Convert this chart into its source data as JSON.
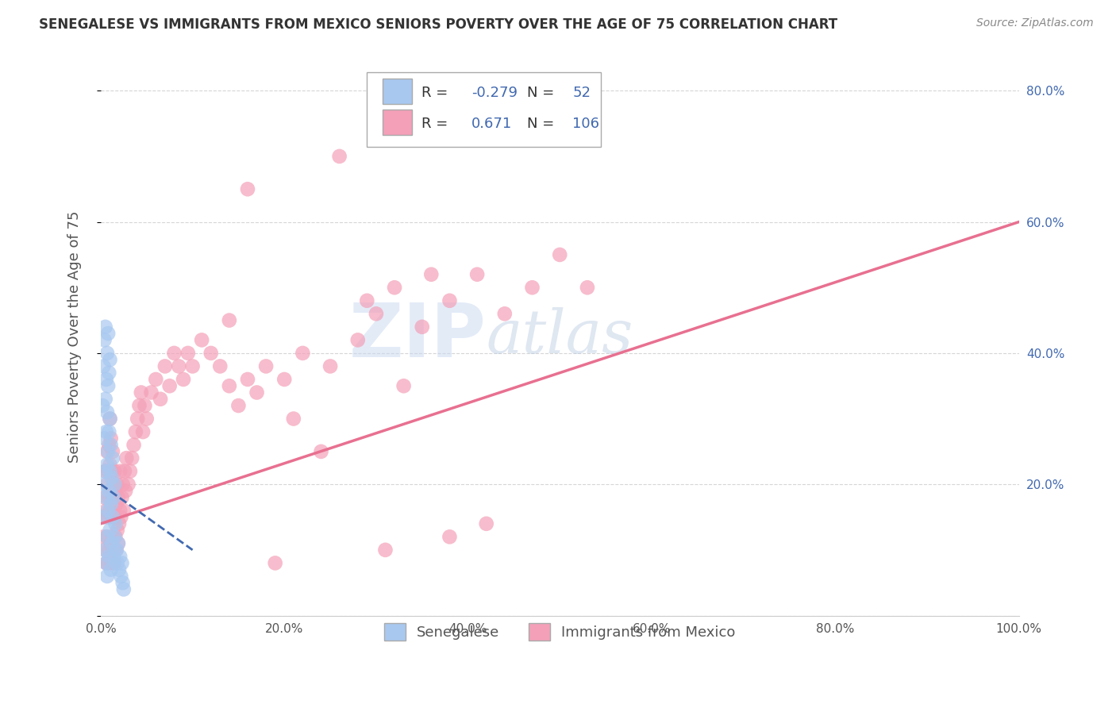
{
  "title": "SENEGALESE VS IMMIGRANTS FROM MEXICO SENIORS POVERTY OVER THE AGE OF 75 CORRELATION CHART",
  "source": "Source: ZipAtlas.com",
  "ylabel": "Seniors Poverty Over the Age of 75",
  "xlim": [
    0.0,
    1.0
  ],
  "ylim": [
    0.0,
    0.85
  ],
  "xticks": [
    0.0,
    0.2,
    0.4,
    0.6,
    0.8,
    1.0
  ],
  "xtick_labels": [
    "0.0%",
    "20.0%",
    "40.0%",
    "60.0%",
    "80.0%",
    "100.0%"
  ],
  "yticks": [
    0.0,
    0.2,
    0.4,
    0.6,
    0.8
  ],
  "right_ytick_labels": [
    "20.0%",
    "40.0%",
    "60.0%",
    "80.0%"
  ],
  "right_yticks": [
    0.2,
    0.4,
    0.6,
    0.8
  ],
  "blue_R": -0.279,
  "blue_N": 52,
  "pink_R": 0.671,
  "pink_N": 106,
  "blue_color": "#A8C8F0",
  "pink_color": "#F4A0B8",
  "blue_line_color": "#4169B0",
  "pink_line_color": "#E87090",
  "legend_label_blue": "Senegalese",
  "legend_label_pink": "Immigrants from Mexico",
  "title_color": "#333333",
  "label_color": "#555555",
  "tick_color": "#555555",
  "grid_color": "#CCCCCC",
  "watermark_zip": "ZIP",
  "watermark_atlas": "atlas",
  "background_color": "#FFFFFF",
  "blue_scatter_x": [
    0.002,
    0.003,
    0.003,
    0.004,
    0.004,
    0.004,
    0.005,
    0.005,
    0.005,
    0.005,
    0.006,
    0.006,
    0.006,
    0.006,
    0.007,
    0.007,
    0.007,
    0.007,
    0.007,
    0.008,
    0.008,
    0.008,
    0.008,
    0.009,
    0.009,
    0.009,
    0.009,
    0.01,
    0.01,
    0.01,
    0.01,
    0.011,
    0.011,
    0.011,
    0.012,
    0.012,
    0.013,
    0.013,
    0.014,
    0.014,
    0.015,
    0.015,
    0.016,
    0.017,
    0.018,
    0.019,
    0.02,
    0.021,
    0.022,
    0.023,
    0.024,
    0.025
  ],
  "blue_scatter_y": [
    0.32,
    0.2,
    0.38,
    0.15,
    0.27,
    0.42,
    0.1,
    0.22,
    0.33,
    0.44,
    0.08,
    0.18,
    0.28,
    0.36,
    0.12,
    0.23,
    0.31,
    0.4,
    0.06,
    0.16,
    0.25,
    0.35,
    0.43,
    0.09,
    0.19,
    0.28,
    0.37,
    0.13,
    0.22,
    0.3,
    0.39,
    0.07,
    0.17,
    0.26,
    0.11,
    0.21,
    0.15,
    0.24,
    0.09,
    0.18,
    0.12,
    0.2,
    0.14,
    0.1,
    0.08,
    0.11,
    0.07,
    0.09,
    0.06,
    0.08,
    0.05,
    0.04
  ],
  "pink_scatter_x": [
    0.002,
    0.003,
    0.004,
    0.005,
    0.005,
    0.006,
    0.006,
    0.007,
    0.007,
    0.007,
    0.008,
    0.008,
    0.008,
    0.009,
    0.009,
    0.009,
    0.01,
    0.01,
    0.01,
    0.01,
    0.011,
    0.011,
    0.011,
    0.012,
    0.012,
    0.012,
    0.013,
    0.013,
    0.013,
    0.014,
    0.014,
    0.015,
    0.015,
    0.015,
    0.016,
    0.016,
    0.017,
    0.017,
    0.018,
    0.018,
    0.019,
    0.019,
    0.02,
    0.021,
    0.021,
    0.022,
    0.023,
    0.024,
    0.025,
    0.026,
    0.027,
    0.028,
    0.03,
    0.032,
    0.034,
    0.036,
    0.038,
    0.04,
    0.042,
    0.044,
    0.046,
    0.048,
    0.05,
    0.055,
    0.06,
    0.065,
    0.07,
    0.075,
    0.08,
    0.085,
    0.09,
    0.095,
    0.1,
    0.11,
    0.12,
    0.13,
    0.14,
    0.15,
    0.16,
    0.17,
    0.18,
    0.2,
    0.22,
    0.25,
    0.28,
    0.3,
    0.32,
    0.35,
    0.38,
    0.41,
    0.44,
    0.47,
    0.5,
    0.53,
    0.42,
    0.38,
    0.31,
    0.26,
    0.19,
    0.14,
    0.16,
    0.21,
    0.24,
    0.29,
    0.33,
    0.36
  ],
  "pink_scatter_y": [
    0.15,
    0.12,
    0.18,
    0.1,
    0.22,
    0.08,
    0.16,
    0.12,
    0.2,
    0.25,
    0.08,
    0.15,
    0.22,
    0.1,
    0.18,
    0.26,
    0.09,
    0.16,
    0.23,
    0.3,
    0.11,
    0.19,
    0.27,
    0.08,
    0.15,
    0.22,
    0.12,
    0.18,
    0.25,
    0.1,
    0.2,
    0.08,
    0.15,
    0.22,
    0.12,
    0.19,
    0.1,
    0.17,
    0.13,
    0.2,
    0.11,
    0.18,
    0.14,
    0.16,
    0.22,
    0.15,
    0.18,
    0.2,
    0.16,
    0.22,
    0.19,
    0.24,
    0.2,
    0.22,
    0.24,
    0.26,
    0.28,
    0.3,
    0.32,
    0.34,
    0.28,
    0.32,
    0.3,
    0.34,
    0.36,
    0.33,
    0.38,
    0.35,
    0.4,
    0.38,
    0.36,
    0.4,
    0.38,
    0.42,
    0.4,
    0.38,
    0.35,
    0.32,
    0.36,
    0.34,
    0.38,
    0.36,
    0.4,
    0.38,
    0.42,
    0.46,
    0.5,
    0.44,
    0.48,
    0.52,
    0.46,
    0.5,
    0.55,
    0.5,
    0.14,
    0.12,
    0.1,
    0.7,
    0.08,
    0.45,
    0.65,
    0.3,
    0.25,
    0.48,
    0.35,
    0.52
  ],
  "pink_trend_x0": 0.0,
  "pink_trend_y0": 0.14,
  "pink_trend_x1": 1.0,
  "pink_trend_y1": 0.6,
  "blue_trend_x0": 0.0,
  "blue_trend_y0": 0.2,
  "blue_trend_x1": 0.1,
  "blue_trend_y1": 0.1
}
